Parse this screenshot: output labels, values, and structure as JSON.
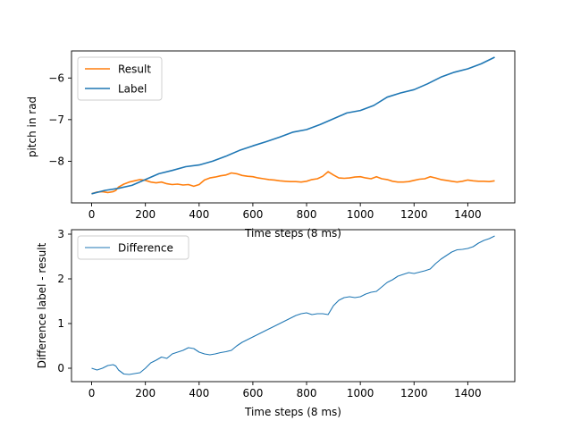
{
  "chart_data": [
    {
      "type": "line",
      "xlabel": "Time steps (8 ms)",
      "ylabel": "pitch in rad",
      "xlim": [
        -75,
        1575
      ],
      "ylim": [
        -9.0,
        -5.35
      ],
      "xticks": [
        0,
        200,
        400,
        600,
        800,
        1000,
        1200,
        1400
      ],
      "yticks": [
        -8,
        -7,
        -6
      ],
      "legend_position": "upper-left",
      "grid": false,
      "series": [
        {
          "name": "Result",
          "color": "#ff7f0e",
          "x": [
            0,
            20,
            40,
            60,
            80,
            90,
            100,
            120,
            140,
            160,
            180,
            200,
            220,
            240,
            260,
            280,
            300,
            320,
            340,
            360,
            380,
            400,
            420,
            440,
            460,
            480,
            500,
            520,
            540,
            560,
            580,
            600,
            620,
            640,
            660,
            680,
            700,
            720,
            740,
            760,
            780,
            800,
            820,
            840,
            860,
            880,
            900,
            920,
            940,
            960,
            980,
            1000,
            1020,
            1040,
            1060,
            1080,
            1100,
            1120,
            1140,
            1160,
            1180,
            1200,
            1220,
            1240,
            1260,
            1280,
            1300,
            1320,
            1340,
            1360,
            1380,
            1400,
            1420,
            1440,
            1460,
            1480,
            1500
          ],
          "y": [
            -8.78,
            -8.74,
            -8.73,
            -8.75,
            -8.73,
            -8.7,
            -8.62,
            -8.55,
            -8.5,
            -8.47,
            -8.44,
            -8.46,
            -8.5,
            -8.52,
            -8.5,
            -8.54,
            -8.56,
            -8.55,
            -8.57,
            -8.56,
            -8.6,
            -8.56,
            -8.45,
            -8.4,
            -8.38,
            -8.35,
            -8.33,
            -8.28,
            -8.3,
            -8.34,
            -8.36,
            -8.37,
            -8.4,
            -8.42,
            -8.44,
            -8.45,
            -8.47,
            -8.48,
            -8.49,
            -8.49,
            -8.5,
            -8.48,
            -8.44,
            -8.42,
            -8.36,
            -8.25,
            -8.33,
            -8.4,
            -8.41,
            -8.4,
            -8.38,
            -8.37,
            -8.4,
            -8.42,
            -8.37,
            -8.42,
            -8.44,
            -8.48,
            -8.5,
            -8.5,
            -8.49,
            -8.46,
            -8.43,
            -8.42,
            -8.37,
            -8.4,
            -8.44,
            -8.46,
            -8.48,
            -8.5,
            -8.48,
            -8.45,
            -8.47,
            -8.48,
            -8.48,
            -8.49,
            -8.47
          ]
        },
        {
          "name": "Label",
          "color": "#1f77b4",
          "x": [
            0,
            50,
            100,
            150,
            200,
            250,
            300,
            350,
            400,
            450,
            500,
            550,
            600,
            650,
            700,
            750,
            800,
            850,
            900,
            950,
            1000,
            1050,
            1100,
            1150,
            1200,
            1250,
            1300,
            1350,
            1400,
            1450,
            1500
          ],
          "y": [
            -8.78,
            -8.7,
            -8.65,
            -8.58,
            -8.44,
            -8.3,
            -8.22,
            -8.13,
            -8.09,
            -8.0,
            -7.88,
            -7.74,
            -7.63,
            -7.53,
            -7.42,
            -7.3,
            -7.24,
            -7.12,
            -6.98,
            -6.84,
            -6.78,
            -6.66,
            -6.46,
            -6.36,
            -6.28,
            -6.14,
            -5.98,
            -5.86,
            -5.78,
            -5.66,
            -5.5
          ]
        }
      ]
    },
    {
      "type": "line",
      "xlabel": "Time steps (8 ms)",
      "ylabel": "Difference label - result",
      "xlim": [
        -75,
        1575
      ],
      "ylim": [
        -0.3,
        3.1
      ],
      "xticks": [
        0,
        200,
        400,
        600,
        800,
        1000,
        1200,
        1400
      ],
      "yticks": [
        0,
        1,
        2,
        3
      ],
      "legend_position": "upper-left",
      "grid": false,
      "series": [
        {
          "name": "Difference",
          "color": "#1f77b4",
          "x": [
            0,
            20,
            40,
            60,
            80,
            90,
            100,
            120,
            140,
            160,
            180,
            200,
            220,
            240,
            260,
            280,
            300,
            320,
            340,
            360,
            380,
            400,
            420,
            440,
            460,
            480,
            500,
            520,
            540,
            560,
            580,
            600,
            620,
            640,
            660,
            680,
            700,
            720,
            740,
            760,
            780,
            800,
            820,
            840,
            860,
            880,
            900,
            920,
            940,
            960,
            980,
            1000,
            1020,
            1040,
            1060,
            1080,
            1100,
            1120,
            1140,
            1160,
            1180,
            1200,
            1220,
            1240,
            1260,
            1280,
            1300,
            1320,
            1340,
            1360,
            1380,
            1400,
            1420,
            1440,
            1460,
            1480,
            1500
          ],
          "y": [
            0.0,
            -0.04,
            0.0,
            0.06,
            0.08,
            0.05,
            -0.04,
            -0.13,
            -0.14,
            -0.12,
            -0.1,
            0.0,
            0.12,
            0.18,
            0.25,
            0.22,
            0.32,
            0.36,
            0.4,
            0.46,
            0.44,
            0.36,
            0.32,
            0.3,
            0.32,
            0.35,
            0.37,
            0.4,
            0.5,
            0.58,
            0.64,
            0.7,
            0.76,
            0.82,
            0.88,
            0.94,
            1.0,
            1.06,
            1.12,
            1.18,
            1.22,
            1.24,
            1.2,
            1.22,
            1.22,
            1.2,
            1.4,
            1.52,
            1.58,
            1.6,
            1.58,
            1.6,
            1.66,
            1.7,
            1.72,
            1.82,
            1.92,
            1.98,
            2.06,
            2.1,
            2.14,
            2.12,
            2.15,
            2.18,
            2.22,
            2.34,
            2.44,
            2.52,
            2.6,
            2.65,
            2.66,
            2.68,
            2.72,
            2.8,
            2.86,
            2.9,
            2.96
          ]
        }
      ]
    }
  ]
}
